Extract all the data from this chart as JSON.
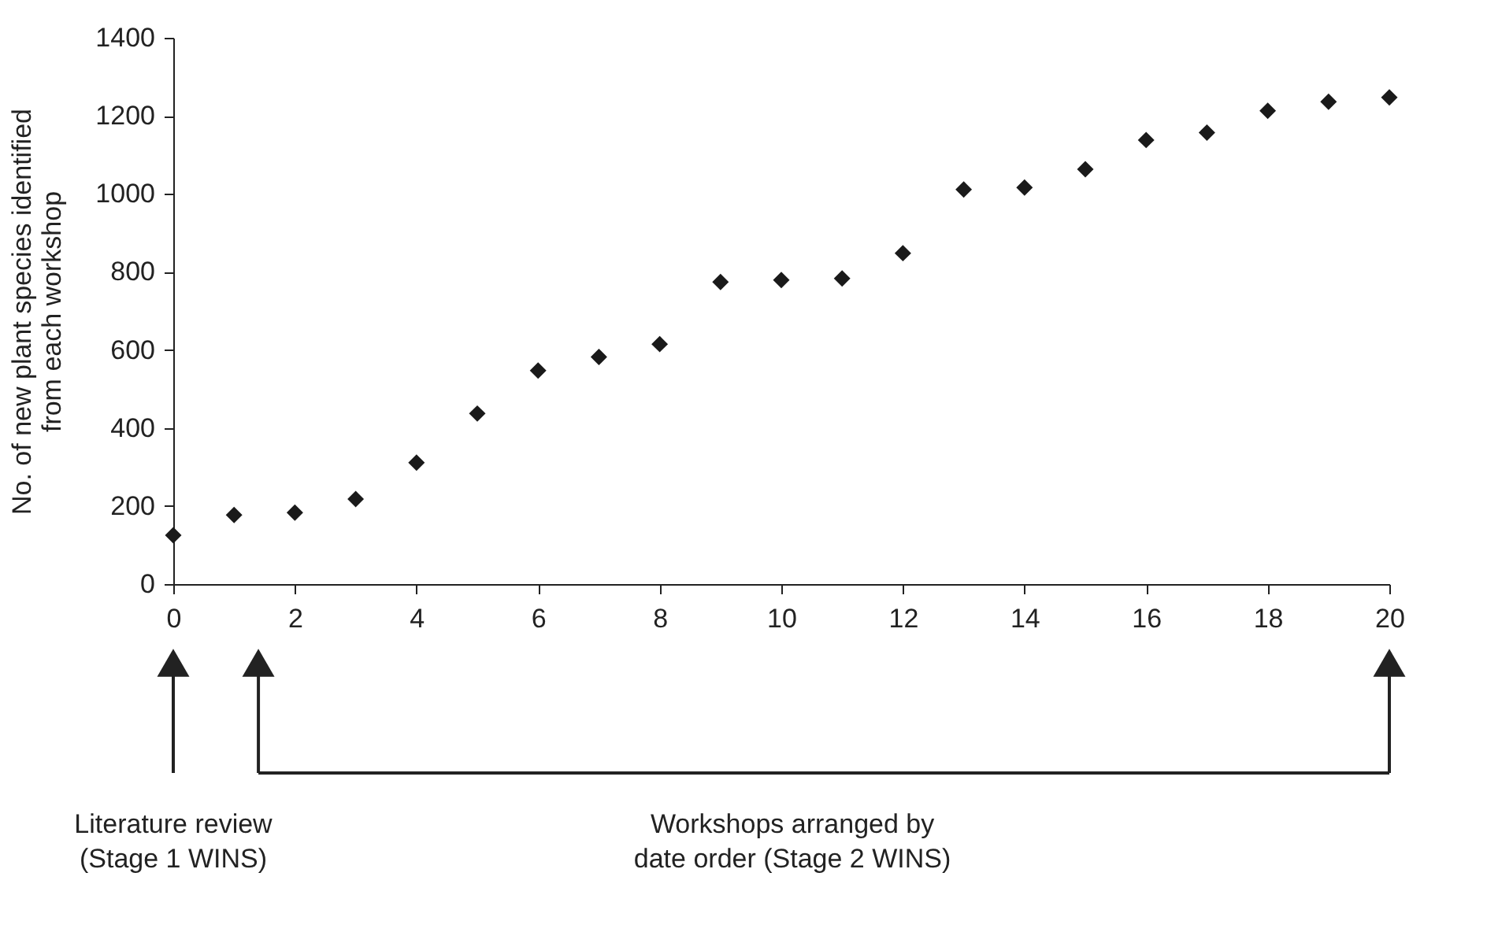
{
  "chart_data": {
    "type": "scatter",
    "marker": "diamond",
    "grid": false,
    "legend": false,
    "ylabel": "No. of new plant species identified\nfrom each workshop",
    "x": [
      0,
      1,
      2,
      3,
      4,
      5,
      6,
      7,
      8,
      9,
      10,
      11,
      12,
      13,
      14,
      15,
      16,
      17,
      18,
      19,
      20
    ],
    "series": [
      {
        "color": "#1a1a1a",
        "values": [
          125,
          177,
          183,
          218,
          311,
          437,
          547,
          582,
          615,
          774,
          779,
          783,
          848,
          1011,
          1016,
          1063,
          1138,
          1157,
          1213,
          1236,
          1247
        ]
      }
    ],
    "xlim": [
      0,
      20
    ],
    "xticks": [
      0,
      2,
      4,
      6,
      8,
      10,
      12,
      14,
      16,
      18,
      20
    ],
    "ylim": [
      0,
      1400
    ],
    "yticks": [
      0,
      200,
      400,
      600,
      800,
      1000,
      1200,
      1400
    ],
    "annotations": [
      "Literature review\n(Stage 1 WINS)",
      "Workshops arranged by\ndate order (Stage 2 WINS)"
    ]
  }
}
